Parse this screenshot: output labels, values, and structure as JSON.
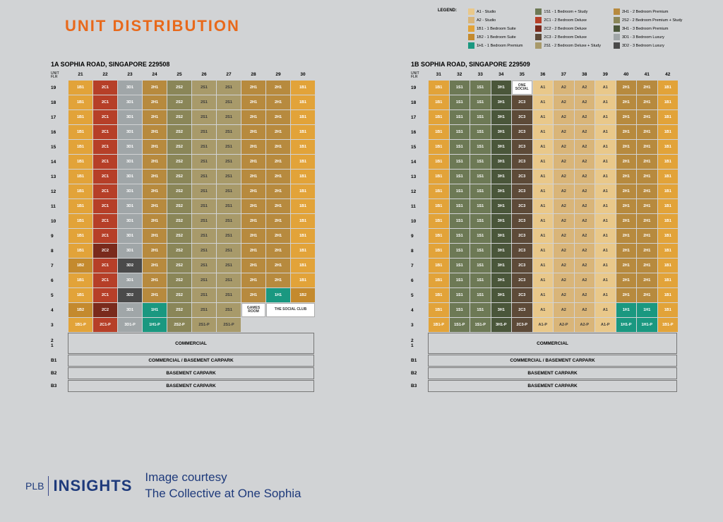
{
  "title": "UNIT DISTRIBUTION",
  "title_color": "#e8691b",
  "colors": {
    "A1": "#e9c88a",
    "A2": "#d9b579",
    "1B1": "#e2a339",
    "1B2": "#c48a2e",
    "1H1": "#1a9880",
    "1S1": "#6d7955",
    "2C1": "#b63f28",
    "2C2": "#7a2a1c",
    "2C3": "#5d4a38",
    "2S1": "#a89a6a",
    "2S2": "#8a8658",
    "2H1": "#b78a3e",
    "3H1": "#4a563a",
    "3D1": "#a0a6a8",
    "3D2": "#4a4a4a",
    "1B1-P": "#e2a339",
    "1S1-P": "#6d7955",
    "1H1-P": "#1a9880",
    "2C1-P": "#b63f28",
    "2C3-P": "#5d4a38",
    "2S1-P": "#a89a6a",
    "2S2-P": "#8a8658",
    "2H1-P": "#b78a3e",
    "3D1-P": "#a0a6a8",
    "3H1-P": "#4a563a",
    "A1-P": "#e9c88a",
    "A2-P": "#d9b579"
  },
  "light_text": [
    "A1",
    "A2",
    "2S1",
    "A1-P",
    "A2-P",
    "2S1-P"
  ],
  "legend": {
    "label": "LEGEND:",
    "cols": [
      [
        [
          "A1",
          "A1 - Studio"
        ],
        [
          "A2",
          "A2 - Studio"
        ],
        [
          "1B1",
          "1B1 - 1 Bedroom Suite"
        ],
        [
          "1B2",
          "1B2 - 1 Bedroom Suite"
        ],
        [
          "1H1",
          "1H1 - 1 Bedroom Premium"
        ]
      ],
      [
        [
          "1S1",
          "1S1 - 1 Bedroom + Study"
        ],
        [
          "2C1",
          "2C1 - 2 Bedroom Deluxe"
        ],
        [
          "2C2",
          "2C2 - 2 Bedroom Deluxe"
        ],
        [
          "2C3",
          "2C3 - 2 Bedroom Deluxe"
        ],
        [
          "2S1",
          "2S1 - 2 Bedroom Deluxe + Study"
        ]
      ],
      [
        [
          "2H1",
          "2H1 - 2 Bedroom Premium"
        ],
        [
          "2S2",
          "2S2 - 2 Bedroom Premium + Study"
        ],
        [
          "3H1",
          "3H1 - 3 Bedroom Premium"
        ],
        [
          "3D1",
          "3D1 - 3 Bedroom Luxury"
        ],
        [
          "3D2",
          "3D2 - 3 Bedroom Luxury"
        ]
      ]
    ]
  },
  "building_a": {
    "address": "1A SOPHIA ROAD, SINGAPORE 229508",
    "unit_flr": "UNIT\nFLR",
    "cols": [
      "21",
      "22",
      "23",
      "24",
      "25",
      "26",
      "27",
      "28",
      "29",
      "30"
    ],
    "rows": [
      {
        "f": "19",
        "c": [
          "1B1",
          "2C1",
          "3D1",
          "2H1",
          "2S2",
          "2S1",
          "2S1",
          "2H1",
          "2H1",
          "1B1"
        ]
      },
      {
        "f": "18",
        "c": [
          "1B1",
          "2C1",
          "3D1",
          "2H1",
          "2S2",
          "2S1",
          "2S1",
          "2H1",
          "2H1",
          "1B1"
        ]
      },
      {
        "f": "17",
        "c": [
          "1B1",
          "2C1",
          "3D1",
          "2H1",
          "2S2",
          "2S1",
          "2S1",
          "2H1",
          "2H1",
          "1B1"
        ]
      },
      {
        "f": "16",
        "c": [
          "1B1",
          "2C1",
          "3D1",
          "2H1",
          "2S2",
          "2S1",
          "2S1",
          "2H1",
          "2H1",
          "1B1"
        ]
      },
      {
        "f": "15",
        "c": [
          "1B1",
          "2C1",
          "3D1",
          "2H1",
          "2S2",
          "2S1",
          "2S1",
          "2H1",
          "2H1",
          "1B1"
        ]
      },
      {
        "f": "14",
        "c": [
          "1B1",
          "2C1",
          "3D1",
          "2H1",
          "2S2",
          "2S1",
          "2S1",
          "2H1",
          "2H1",
          "1B1"
        ]
      },
      {
        "f": "13",
        "c": [
          "1B1",
          "2C1",
          "3D1",
          "2H1",
          "2S2",
          "2S1",
          "2S1",
          "2H1",
          "2H1",
          "1B1"
        ]
      },
      {
        "f": "12",
        "c": [
          "1B1",
          "2C1",
          "3D1",
          "2H1",
          "2S2",
          "2S1",
          "2S1",
          "2H1",
          "2H1",
          "1B1"
        ]
      },
      {
        "f": "11",
        "c": [
          "1B1",
          "2C1",
          "3D1",
          "2H1",
          "2S2",
          "2S1",
          "2S1",
          "2H1",
          "2H1",
          "1B1"
        ]
      },
      {
        "f": "10",
        "c": [
          "1B1",
          "2C1",
          "3D1",
          "2H1",
          "2S2",
          "2S1",
          "2S1",
          "2H1",
          "2H1",
          "1B1"
        ]
      },
      {
        "f": "9",
        "c": [
          "1B1",
          "2C1",
          "3D1",
          "2H1",
          "2S2",
          "2S1",
          "2S1",
          "2H1",
          "2H1",
          "1B1"
        ]
      },
      {
        "f": "8",
        "c": [
          "1B1",
          "2C2",
          "3D1",
          "2H1",
          "2S2",
          "2S1",
          "2S1",
          "2H1",
          "2H1",
          "1B1"
        ]
      },
      {
        "f": "7",
        "c": [
          "1B2",
          "2C1",
          "3D2",
          "2H1",
          "2S2",
          "2S1",
          "2S1",
          "2H1",
          "2H1",
          "1B1"
        ]
      },
      {
        "f": "6",
        "c": [
          "1B1",
          "2C1",
          "3D1",
          "2H1",
          "2S2",
          "2S1",
          "2S1",
          "2H1",
          "2H1",
          "1B1"
        ]
      },
      {
        "f": "5",
        "c": [
          "1B1",
          "2C1",
          "3D2",
          "2H1",
          "2S2",
          "2S1",
          "2S1",
          "2H1",
          "1H1",
          "1B2"
        ]
      }
    ],
    "row4": {
      "f": "4",
      "c": [
        "1B2",
        "2C2",
        "3D1",
        "1H1",
        "2S2",
        "2S1",
        "2S1"
      ],
      "special": [
        "GAMES ROOM",
        "THE SOCIAL CLUB"
      ]
    },
    "row3": {
      "f": "3",
      "c": [
        "1B1-P",
        "2C1-P",
        "3D1-P",
        "1H1-P",
        "2S2-P",
        "2S1-P",
        "2S1-P"
      ]
    },
    "footer": [
      {
        "labels": [
          "2",
          "1"
        ],
        "text": "COMMERCIAL",
        "tall": true
      },
      {
        "labels": [
          "B1"
        ],
        "text": "COMMERCIAL / BASEMENT CARPARK"
      },
      {
        "labels": [
          "B2"
        ],
        "text": "BASEMENT CARPARK"
      },
      {
        "labels": [
          "B3"
        ],
        "text": "BASEMENT CARPARK"
      }
    ]
  },
  "building_b": {
    "address": "1B SOPHIA ROAD, SINGAPORE 229509",
    "unit_flr": "UNIT\nFLR",
    "cols": [
      "31",
      "32",
      "33",
      "34",
      "35",
      "36",
      "37",
      "38",
      "39",
      "40",
      "41",
      "42"
    ],
    "rows": [
      {
        "f": "19",
        "c": [
          "1B1",
          "1S1",
          "1S1",
          "3H1",
          {
            "special": "ONE SOCIAL"
          },
          "A1",
          "A2",
          "A2",
          "A1",
          "2H1",
          "2H1",
          "1B1"
        ]
      },
      {
        "f": "18",
        "c": [
          "1B1",
          "1S1",
          "1S1",
          "3H1",
          "2C3",
          "A1",
          "A2",
          "A2",
          "A1",
          "2H1",
          "2H1",
          "1B1"
        ]
      },
      {
        "f": "17",
        "c": [
          "1B1",
          "1S1",
          "1S1",
          "3H1",
          "2C3",
          "A1",
          "A2",
          "A2",
          "A1",
          "2H1",
          "2H1",
          "1B1"
        ]
      },
      {
        "f": "16",
        "c": [
          "1B1",
          "1S1",
          "1S1",
          "3H1",
          "2C3",
          "A1",
          "A2",
          "A2",
          "A1",
          "2H1",
          "2H1",
          "1B1"
        ]
      },
      {
        "f": "15",
        "c": [
          "1B1",
          "1S1",
          "1S1",
          "3H1",
          "2C3",
          "A1",
          "A2",
          "A2",
          "A1",
          "2H1",
          "2H1",
          "1B1"
        ]
      },
      {
        "f": "14",
        "c": [
          "1B1",
          "1S1",
          "1S1",
          "3H1",
          "2C3",
          "A1",
          "A2",
          "A2",
          "A1",
          "2H1",
          "2H1",
          "1B1"
        ]
      },
      {
        "f": "13",
        "c": [
          "1B1",
          "1S1",
          "1S1",
          "3H1",
          "2C3",
          "A1",
          "A2",
          "A2",
          "A1",
          "2H1",
          "2H1",
          "1B1"
        ]
      },
      {
        "f": "12",
        "c": [
          "1B1",
          "1S1",
          "1S1",
          "3H1",
          "2C3",
          "A1",
          "A2",
          "A2",
          "A1",
          "2H1",
          "2H1",
          "1B1"
        ]
      },
      {
        "f": "11",
        "c": [
          "1B1",
          "1S1",
          "1S1",
          "3H1",
          "2C3",
          "A1",
          "A2",
          "A2",
          "A1",
          "2H1",
          "2H1",
          "1B1"
        ]
      },
      {
        "f": "10",
        "c": [
          "1B1",
          "1S1",
          "1S1",
          "3H1",
          "2C3",
          "A1",
          "A2",
          "A2",
          "A1",
          "2H1",
          "2H1",
          "1B1"
        ]
      },
      {
        "f": "9",
        "c": [
          "1B1",
          "1S1",
          "1S1",
          "3H1",
          "2C3",
          "A1",
          "A2",
          "A2",
          "A1",
          "2H1",
          "2H1",
          "1B1"
        ]
      },
      {
        "f": "8",
        "c": [
          "1B1",
          "1S1",
          "1S1",
          "3H1",
          "2C3",
          "A1",
          "A2",
          "A2",
          "A1",
          "2H1",
          "2H1",
          "1B1"
        ]
      },
      {
        "f": "7",
        "c": [
          "1B1",
          "1S1",
          "1S1",
          "3H1",
          "2C3",
          "A1",
          "A2",
          "A2",
          "A1",
          "2H1",
          "2H1",
          "1B1"
        ]
      },
      {
        "f": "6",
        "c": [
          "1B1",
          "1S1",
          "1S1",
          "3H1",
          "2C3",
          "A1",
          "A2",
          "A2",
          "A1",
          "2H1",
          "2H1",
          "1B1"
        ]
      },
      {
        "f": "5",
        "c": [
          "1B1",
          "1S1",
          "1S1",
          "3H1",
          "2C3",
          "A1",
          "A2",
          "A2",
          "A1",
          "2H1",
          "2H1",
          "1B1"
        ]
      },
      {
        "f": "4",
        "c": [
          "1B1",
          "1S1",
          "1S1",
          "3H1",
          "2C3",
          "A1",
          "A2",
          "A2",
          "A1",
          "1H1",
          "1H1",
          "1B1"
        ]
      },
      {
        "f": "3",
        "c": [
          "1B1-P",
          "1S1-P",
          "1S1-P",
          "3H1-P",
          "2C3-P",
          "A1-P",
          "A2-P",
          "A2-P",
          "A1-P",
          "1H1-P",
          "1H1-P",
          "1B1-P"
        ]
      }
    ],
    "footer": [
      {
        "labels": [
          "2",
          "1"
        ],
        "text": "COMMERCIAL",
        "tall": true
      },
      {
        "labels": [
          "B1"
        ],
        "text": "COMMERCIAL / BASEMENT CARPARK"
      },
      {
        "labels": [
          "B2"
        ],
        "text": "BASEMENT CARPARK"
      },
      {
        "labels": [
          "B3"
        ],
        "text": "BASEMENT CARPARK"
      }
    ]
  },
  "credits": {
    "plb_small": "PLB",
    "plb_bold": "INSIGHTS",
    "plb_color": "#1e3a7b",
    "courtesy": "Image courtesy\nThe Collective at One Sophia",
    "courtesy_color": "#1e3a7b"
  }
}
